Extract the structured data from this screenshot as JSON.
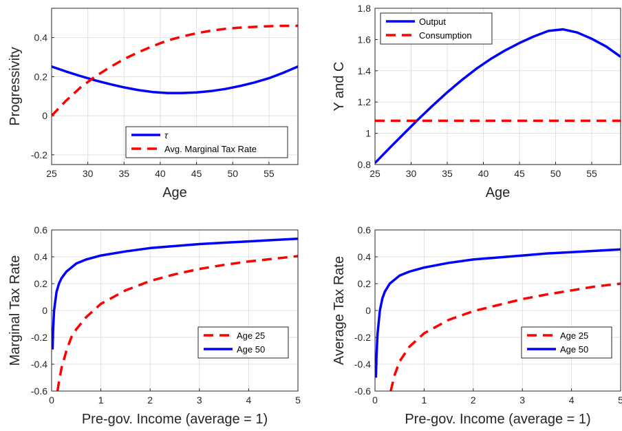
{
  "chart_data": [
    {
      "type": "line",
      "xlabel": "Age",
      "ylabel": "Progressivity",
      "xlim": [
        25,
        59
      ],
      "ylim": [
        -0.25,
        0.55
      ],
      "xticks": [
        "25",
        "30",
        "35",
        "40",
        "45",
        "50",
        "55"
      ],
      "yticks": [
        "-0.2",
        "0",
        "0.2",
        "0.4"
      ],
      "grid": true,
      "legend_position": "bottom-right",
      "series": [
        {
          "name": "τ",
          "color": "#0000ff",
          "style": "solid",
          "x": [
            25,
            27,
            29,
            31,
            33,
            35,
            37,
            39,
            41,
            43,
            45,
            47,
            49,
            51,
            53,
            55,
            57,
            59
          ],
          "y": [
            0.252,
            0.226,
            0.203,
            0.181,
            0.162,
            0.145,
            0.131,
            0.121,
            0.116,
            0.116,
            0.119,
            0.126,
            0.137,
            0.152,
            0.17,
            0.192,
            0.22,
            0.252
          ]
        },
        {
          "name": "Avg. Marginal Tax Rate",
          "color": "#ff0000",
          "style": "dashed",
          "x": [
            25,
            27,
            29,
            31,
            33,
            35,
            37,
            39,
            41,
            43,
            45,
            47,
            49,
            51,
            53,
            55,
            57,
            59
          ],
          "y": [
            0.0,
            0.077,
            0.145,
            0.2,
            0.247,
            0.29,
            0.325,
            0.357,
            0.385,
            0.405,
            0.422,
            0.435,
            0.445,
            0.451,
            0.455,
            0.458,
            0.46,
            0.46
          ]
        }
      ]
    },
    {
      "type": "line",
      "xlabel": "Age",
      "ylabel": "Y and C",
      "xlim": [
        25,
        59
      ],
      "ylim": [
        0.8,
        1.8
      ],
      "xticks": [
        "25",
        "30",
        "35",
        "40",
        "45",
        "50",
        "55"
      ],
      "yticks": [
        "0.8",
        "1",
        "1.2",
        "1.4",
        "1.6",
        "1.8"
      ],
      "grid": true,
      "legend_position": "top-left",
      "series": [
        {
          "name": "Output",
          "color": "#0000ff",
          "style": "solid",
          "x": [
            25,
            27,
            29,
            31,
            33,
            35,
            37,
            39,
            41,
            43,
            45,
            47,
            49,
            51,
            53,
            55,
            57,
            59
          ],
          "y": [
            0.81,
            0.905,
            0.998,
            1.09,
            1.178,
            1.262,
            1.34,
            1.412,
            1.475,
            1.53,
            1.578,
            1.62,
            1.655,
            1.665,
            1.645,
            1.605,
            1.555,
            1.49
          ]
        },
        {
          "name": "Consumption",
          "color": "#ff0000",
          "style": "dashed",
          "x": [
            25,
            59
          ],
          "y": [
            1.08,
            1.08
          ]
        }
      ]
    },
    {
      "type": "line",
      "xlabel": "Pre-gov. Income (average = 1)",
      "ylabel": "Marginal Tax Rate",
      "xlim": [
        0,
        5
      ],
      "ylim": [
        -0.6,
        0.6
      ],
      "xticks": [
        "0",
        "1",
        "2",
        "3",
        "4",
        "5"
      ],
      "yticks": [
        "-0.6",
        "-0.4",
        "-0.2",
        "0",
        "0.2",
        "0.4",
        "0.6"
      ],
      "grid": true,
      "legend_position": "bottom-right",
      "series": [
        {
          "name": "Age 25",
          "color": "#ff0000",
          "style": "dashed",
          "x": [
            0.12,
            0.15,
            0.2,
            0.3,
            0.4,
            0.5,
            0.7,
            1.0,
            1.5,
            2.0,
            2.5,
            3.0,
            3.5,
            4.0,
            4.5,
            5.0
          ],
          "y": [
            -0.6,
            -0.53,
            -0.43,
            -0.3,
            -0.2,
            -0.14,
            -0.05,
            0.05,
            0.15,
            0.22,
            0.27,
            0.31,
            0.34,
            0.365,
            0.385,
            0.405
          ]
        },
        {
          "name": "Age 50",
          "color": "#0000ff",
          "style": "solid",
          "x": [
            0.02,
            0.03,
            0.05,
            0.1,
            0.15,
            0.2,
            0.3,
            0.5,
            0.7,
            1.0,
            1.5,
            2.0,
            2.5,
            3.0,
            3.5,
            4.0,
            4.5,
            5.0
          ],
          "y": [
            -0.29,
            -0.15,
            0.0,
            0.14,
            0.2,
            0.24,
            0.29,
            0.35,
            0.38,
            0.41,
            0.44,
            0.465,
            0.48,
            0.495,
            0.505,
            0.515,
            0.525,
            0.535
          ]
        }
      ]
    },
    {
      "type": "line",
      "xlabel": "Pre-gov. Income (average = 1)",
      "ylabel": "Average Tax Rate",
      "xlim": [
        0,
        5
      ],
      "ylim": [
        -0.6,
        0.6
      ],
      "xticks": [
        "0",
        "1",
        "2",
        "3",
        "4",
        "5"
      ],
      "yticks": [
        "-0.6",
        "-0.4",
        "-0.2",
        "0",
        "0.2",
        "0.4",
        "0.6"
      ],
      "grid": true,
      "legend_position": "bottom-right",
      "series": [
        {
          "name": "Age 25",
          "color": "#ff0000",
          "style": "dashed",
          "x": [
            0.32,
            0.4,
            0.5,
            0.7,
            1.0,
            1.5,
            2.0,
            2.5,
            3.0,
            3.5,
            4.0,
            4.5,
            5.0
          ],
          "y": [
            -0.6,
            -0.48,
            -0.38,
            -0.27,
            -0.17,
            -0.07,
            -0.005,
            0.04,
            0.085,
            0.12,
            0.15,
            0.18,
            0.2
          ]
        },
        {
          "name": "Age 50",
          "color": "#0000ff",
          "style": "solid",
          "x": [
            0.02,
            0.03,
            0.05,
            0.1,
            0.15,
            0.2,
            0.3,
            0.5,
            0.7,
            1.0,
            1.5,
            2.0,
            2.5,
            3.0,
            3.5,
            4.0,
            4.5,
            5.0
          ],
          "y": [
            -0.5,
            -0.35,
            -0.18,
            0.0,
            0.09,
            0.14,
            0.2,
            0.26,
            0.29,
            0.32,
            0.355,
            0.38,
            0.395,
            0.41,
            0.425,
            0.435,
            0.445,
            0.455
          ]
        }
      ]
    }
  ]
}
